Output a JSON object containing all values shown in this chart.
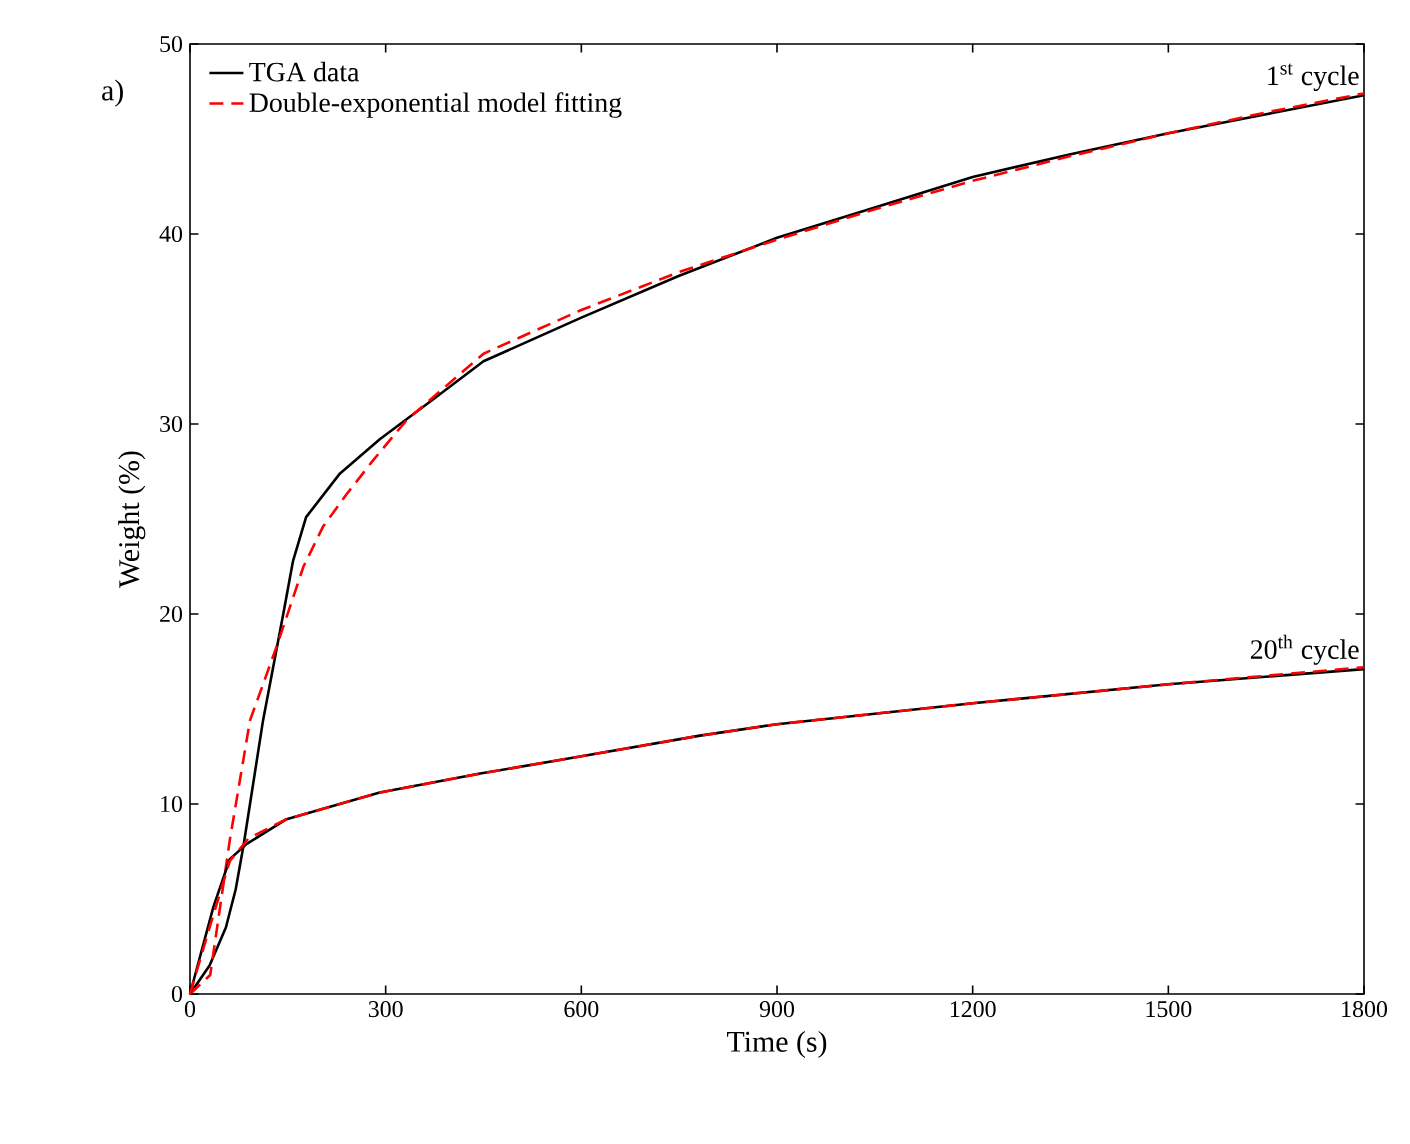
{
  "chart_data": {
    "type": "line",
    "xlabel": "Time (s)",
    "ylabel": "Weight (%)",
    "xlim": [
      0,
      1800
    ],
    "ylim": [
      0,
      50
    ],
    "xticks": [
      0,
      300,
      600,
      900,
      1200,
      1500,
      1800
    ],
    "yticks": [
      0,
      10,
      20,
      30,
      40,
      50
    ],
    "grid": false,
    "legend": "top left",
    "marker": "none",
    "series": [
      {
        "name": "TGA data",
        "color": "#000000",
        "line_style": "solid",
        "x": [
          0,
          30,
          55,
          70,
          82,
          112,
          143,
          158,
          178,
          230,
          291,
          373,
          450,
          600,
          750,
          900,
          1050,
          1200,
          1350,
          1500,
          1650,
          1800
        ],
        "values": [
          0,
          1.5,
          3.5,
          5.5,
          7.8,
          14.4,
          20.0,
          22.8,
          25.1,
          27.4,
          29.2,
          31.3,
          33.3,
          35.6,
          37.8,
          39.8,
          41.4,
          43.0,
          44.2,
          45.3,
          46.3,
          47.3
        ]
      },
      {
        "name": "Double-exponential model fitting",
        "color": "#ff0000",
        "line_style": "dashed",
        "x": [
          0,
          31,
          61,
          92,
          133,
          174,
          204,
          240,
          281,
          332,
          450,
          600,
          750,
          900,
          1050,
          1200,
          1350,
          1500,
          1650,
          1800
        ],
        "values": [
          0,
          1.0,
          8.1,
          14.4,
          18.3,
          22.5,
          24.6,
          26.3,
          28.1,
          30.2,
          33.7,
          36.0,
          38.0,
          39.7,
          41.3,
          42.8,
          44.1,
          45.3,
          46.4,
          47.4
        ]
      },
      {
        "color": "#000000",
        "line_style": "solid",
        "x": [
          0,
          36,
          61,
          87,
          148,
          291,
          445,
          598,
          782,
          900,
          1200,
          1500,
          1800
        ],
        "values": [
          0,
          4.6,
          7.1,
          7.9,
          9.2,
          10.6,
          11.6,
          12.5,
          13.6,
          14.2,
          15.3,
          16.3,
          17.1
        ]
      },
      {
        "color": "#ff0000",
        "line_style": "dashed",
        "x": [
          0,
          30,
          61,
          90,
          148,
          291,
          445,
          598,
          782,
          900,
          1200,
          1500,
          1800
        ],
        "values": [
          0,
          3.5,
          7.0,
          8.2,
          9.2,
          10.6,
          11.6,
          12.5,
          13.6,
          14.2,
          15.3,
          16.3,
          17.2
        ]
      }
    ],
    "annotations": [
      "a)",
      {
        "text": "1$^{st}$ cycle",
        "x": 1800,
        "y": 47.3
      },
      {
        "text": "20$^{th}$ cycle",
        "x": 1800,
        "y": 17.1
      }
    ]
  }
}
